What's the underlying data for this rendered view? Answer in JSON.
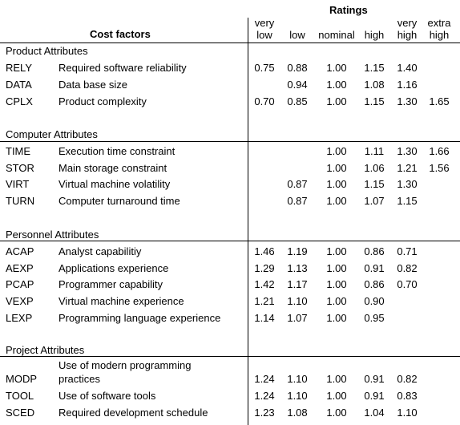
{
  "header": {
    "ratings_title": "Ratings",
    "cost_factors_title": "Cost factors",
    "columns": [
      {
        "line1": "very",
        "line2": "low"
      },
      {
        "line1": "",
        "line2": "low"
      },
      {
        "line1": "",
        "line2": "nominal"
      },
      {
        "line1": "",
        "line2": "high"
      },
      {
        "line1": "very",
        "line2": "high"
      },
      {
        "line1": "extra",
        "line2": "high"
      }
    ]
  },
  "groups": [
    {
      "title": "Product Attributes",
      "rows": [
        {
          "code": "RELY",
          "desc": "Required software reliability",
          "vals": [
            "0.75",
            "0.88",
            "1.00",
            "1.15",
            "1.40",
            ""
          ]
        },
        {
          "code": "DATA",
          "desc": "Data base size",
          "vals": [
            "",
            "0.94",
            "1.00",
            "1.08",
            "1.16",
            ""
          ]
        },
        {
          "code": "CPLX",
          "desc": "Product complexity",
          "vals": [
            "0.70",
            "0.85",
            "1.00",
            "1.15",
            "1.30",
            "1.65"
          ]
        }
      ]
    },
    {
      "title": "Computer Attributes",
      "rows": [
        {
          "code": "TIME",
          "desc": "Execution time constraint",
          "vals": [
            "",
            "",
            "1.00",
            "1.11",
            "1.30",
            "1.66"
          ]
        },
        {
          "code": "STOR",
          "desc": "Main storage constraint",
          "vals": [
            "",
            "",
            "1.00",
            "1.06",
            "1.21",
            "1.56"
          ]
        },
        {
          "code": "VIRT",
          "desc": "Virtual machine volatility",
          "vals": [
            "",
            "0.87",
            "1.00",
            "1.15",
            "1.30",
            ""
          ]
        },
        {
          "code": "TURN",
          "desc": "Computer turnaround time",
          "vals": [
            "",
            "0.87",
            "1.00",
            "1.07",
            "1.15",
            ""
          ]
        }
      ]
    },
    {
      "title": "Personnel Attributes",
      "rows": [
        {
          "code": "ACAP",
          "desc": "Analyst capabilitiy",
          "vals": [
            "1.46",
            "1.19",
            "1.00",
            "0.86",
            "0.71",
            ""
          ]
        },
        {
          "code": "AEXP",
          "desc": "Applications experience",
          "vals": [
            "1.29",
            "1.13",
            "1.00",
            "0.91",
            "0.82",
            ""
          ]
        },
        {
          "code": "PCAP",
          "desc": "Programmer capability",
          "vals": [
            "1.42",
            "1.17",
            "1.00",
            "0.86",
            "0.70",
            ""
          ]
        },
        {
          "code": "VEXP",
          "desc": "Virtual machine experience",
          "vals": [
            "1.21",
            "1.10",
            "1.00",
            "0.90",
            "",
            ""
          ]
        },
        {
          "code": "LEXP",
          "desc": "Programming language experience",
          "vals": [
            "1.14",
            "1.07",
            "1.00",
            "0.95",
            "",
            ""
          ]
        }
      ]
    },
    {
      "title": "Project Attributes",
      "rows": [
        {
          "code": "MODP",
          "desc": "Use of modern programming",
          "desc2": "practices",
          "vals": [
            "1.24",
            "1.10",
            "1.00",
            "0.91",
            "0.82",
            ""
          ]
        },
        {
          "code": "TOOL",
          "desc": "Use of software tools",
          "vals": [
            "1.24",
            "1.10",
            "1.00",
            "0.91",
            "0.83",
            ""
          ]
        },
        {
          "code": "SCED",
          "desc": "Required development schedule",
          "vals": [
            "1.23",
            "1.08",
            "1.00",
            "1.04",
            "1.10",
            ""
          ]
        }
      ]
    }
  ]
}
